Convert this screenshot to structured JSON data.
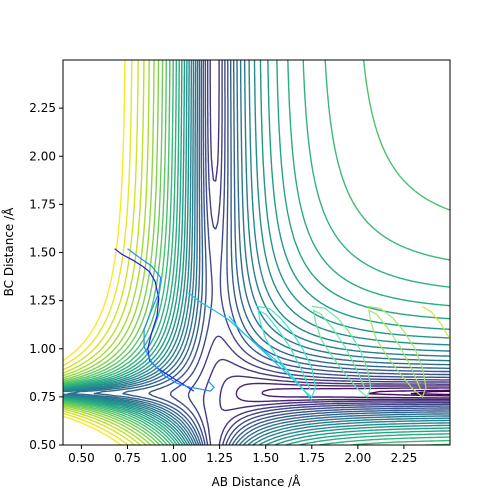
{
  "chart_data": {
    "type": "contour",
    "title": "",
    "xlabel": "AB Distance /Å",
    "ylabel": "BC Distance /Å",
    "xlim": [
      0.4,
      2.5
    ],
    "ylim": [
      0.5,
      2.5
    ],
    "xticks": [
      0.5,
      0.75,
      1.0,
      1.25,
      1.5,
      1.75,
      2.0,
      2.25
    ],
    "yticks": [
      0.5,
      0.75,
      1.0,
      1.25,
      1.5,
      1.75,
      2.0,
      2.25
    ],
    "xtick_labels": [
      "0.50",
      "0.75",
      "1.00",
      "1.25",
      "1.50",
      "1.75",
      "2.00",
      "2.25"
    ],
    "ytick_labels": [
      "0.50",
      "0.75",
      "1.00",
      "1.25",
      "1.50",
      "1.75",
      "2.00",
      "2.25"
    ],
    "grid": false,
    "colormap": "viridis",
    "surface": {
      "well_x": 1.22,
      "well_y": 0.77,
      "levels": [
        0.0012,
        0.0019,
        0.0044,
        0.0075,
        0.011,
        0.016,
        0.022,
        0.03,
        0.04,
        0.052,
        0.066,
        0.083,
        0.103,
        0.127,
        0.155,
        0.19,
        0.23,
        0.28,
        0.34,
        0.41,
        0.5,
        0.61,
        0.75,
        0.92,
        1.13,
        1.4,
        1.75,
        2.2,
        2.8,
        3.6,
        4.7,
        6.2
      ]
    },
    "trajectories": [
      {
        "color": "#1a1aff",
        "x": [
          0.68,
          0.72,
          0.78,
          0.83,
          0.87,
          0.9,
          0.92,
          0.91,
          0.88,
          0.86,
          0.87,
          0.91,
          0.96,
          1.01,
          1.06,
          1.11
        ],
        "y": [
          1.52,
          1.49,
          1.46,
          1.43,
          1.4,
          1.35,
          1.26,
          1.17,
          1.08,
          1.0,
          0.94,
          0.9,
          0.87,
          0.84,
          0.81,
          0.78
        ]
      },
      {
        "color": "#1f8ff0",
        "x": [
          0.75,
          0.82,
          0.88,
          0.93,
          0.92,
          0.88,
          0.84,
          0.84,
          0.88,
          0.95,
          1.02,
          1.09,
          1.15,
          1.2,
          1.22,
          1.19
        ],
        "y": [
          1.52,
          1.47,
          1.43,
          1.37,
          1.29,
          1.2,
          1.1,
          1.01,
          0.93,
          0.86,
          0.82,
          0.8,
          0.79,
          0.78,
          0.8,
          0.83
        ]
      },
      {
        "color": "#1fc0e8",
        "x": [
          1.08,
          1.15,
          1.22,
          1.3,
          1.38,
          1.48,
          1.58,
          1.66,
          1.72,
          1.75,
          1.73,
          1.65,
          1.55,
          1.45,
          1.36,
          1.3
        ],
        "y": [
          1.29,
          1.24,
          1.2,
          1.15,
          1.08,
          1.0,
          0.92,
          0.84,
          0.77,
          0.73,
          0.76,
          0.84,
          0.93,
          1.02,
          1.1,
          1.17
        ]
      },
      {
        "color": "#3ee6d2",
        "x": [
          1.45,
          1.52,
          1.58,
          1.64,
          1.7,
          1.75,
          1.77,
          1.75,
          1.7,
          1.63,
          1.56,
          1.5,
          1.47,
          1.46,
          1.5,
          1.56,
          1.63,
          1.69,
          1.74
        ],
        "y": [
          1.22,
          1.21,
          1.16,
          1.09,
          1.0,
          0.9,
          0.8,
          0.75,
          0.79,
          0.87,
          0.96,
          1.05,
          1.14,
          1.2,
          1.18,
          1.11,
          1.01,
          0.9,
          0.79
        ]
      },
      {
        "color": "#6ee7a0",
        "x": [
          1.75,
          1.82,
          1.89,
          1.95,
          2.01,
          2.05,
          2.07,
          2.05,
          2.0,
          1.93,
          1.86,
          1.8,
          1.77,
          1.76,
          1.8,
          1.86,
          1.93,
          1.99,
          2.04
        ],
        "y": [
          1.22,
          1.21,
          1.16,
          1.09,
          1.0,
          0.9,
          0.8,
          0.75,
          0.79,
          0.87,
          0.96,
          1.05,
          1.14,
          1.2,
          1.18,
          1.11,
          1.01,
          0.9,
          0.79
        ]
      },
      {
        "color": "#a3e56b",
        "x": [
          2.05,
          2.12,
          2.19,
          2.25,
          2.31,
          2.35,
          2.37,
          2.35,
          2.3,
          2.23,
          2.16,
          2.1,
          2.07,
          2.06,
          2.1,
          2.16,
          2.23,
          2.29,
          2.34
        ],
        "y": [
          1.22,
          1.21,
          1.16,
          1.09,
          1.0,
          0.9,
          0.8,
          0.75,
          0.79,
          0.87,
          0.96,
          1.05,
          1.14,
          1.2,
          1.18,
          1.11,
          1.01,
          0.9,
          0.79
        ]
      },
      {
        "color": "#d2e53f",
        "x": [
          2.35,
          2.4,
          2.45,
          2.5,
          2.5
        ],
        "y": [
          1.22,
          1.19,
          1.13,
          1.05,
          0.98
        ]
      }
    ]
  }
}
